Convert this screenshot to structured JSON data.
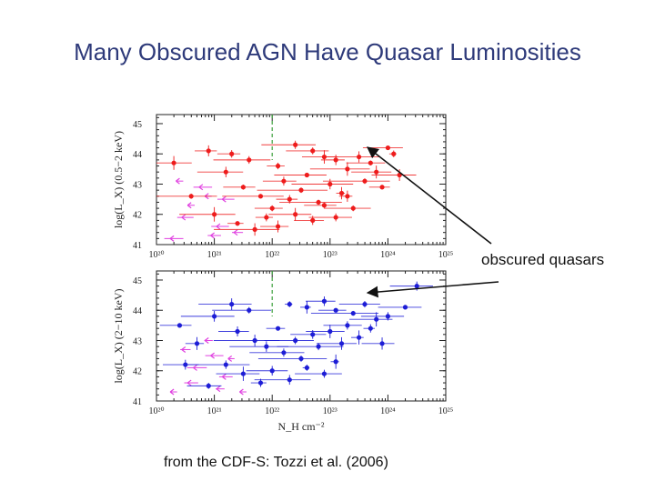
{
  "slide": {
    "title": "Many Obscured AGN Have Quasar Luminosities",
    "annotation": "obscured quasars",
    "caption": "from the CDF-S: Tozzi et al. (2006)"
  },
  "colors": {
    "title": "#2e3a7a",
    "top_series": "#ee1c1c",
    "bottom_series": "#1d1dd6",
    "upper_limits": "#e040e0",
    "reference_line": "#3aa03a"
  },
  "chart_data": [
    {
      "type": "scatter",
      "panel": "top",
      "xlabel": "",
      "ylabel": "log(L_X) (0.5−2 keV)",
      "xscale": "log",
      "xlim": [
        1e+20,
        1e+25
      ],
      "ylim": [
        41,
        45.3
      ],
      "x_tick_labels": [
        "10²⁰",
        "10²¹",
        "10²²",
        "10²³",
        "10²⁴",
        "10²⁵"
      ],
      "y_tick_labels": [
        "41",
        "42",
        "43",
        "44",
        "45"
      ],
      "series": [
        {
          "color": "#ee1c1c",
          "marker": "point-with-errorbars",
          "points": [
            [
              22.1,
              43.6
            ],
            [
              22.4,
              44.3
            ],
            [
              22.7,
              44.1
            ],
            [
              22.9,
              43.9
            ],
            [
              23.1,
              43.8
            ],
            [
              23.3,
              43.5
            ],
            [
              23.5,
              43.9
            ],
            [
              23.7,
              43.7
            ],
            [
              23.8,
              43.4
            ],
            [
              24.0,
              44.2
            ],
            [
              24.1,
              44.0
            ],
            [
              24.2,
              43.3
            ],
            [
              21.2,
              43.4
            ],
            [
              21.5,
              42.9
            ],
            [
              21.8,
              42.6
            ],
            [
              22.0,
              42.2
            ],
            [
              22.2,
              43.1
            ],
            [
              22.3,
              42.5
            ],
            [
              22.5,
              42.8
            ],
            [
              22.6,
              43.3
            ],
            [
              22.8,
              42.4
            ],
            [
              23.0,
              43.0
            ],
            [
              23.2,
              42.7
            ],
            [
              23.4,
              42.2
            ],
            [
              23.6,
              43.1
            ],
            [
              23.9,
              42.9
            ],
            [
              21.0,
              42.0
            ],
            [
              21.4,
              41.7
            ],
            [
              21.7,
              41.5
            ],
            [
              21.9,
              41.9
            ],
            [
              22.1,
              41.6
            ],
            [
              22.4,
              42.0
            ],
            [
              22.7,
              41.8
            ],
            [
              22.9,
              42.3
            ],
            [
              23.1,
              41.9
            ],
            [
              23.3,
              42.6
            ],
            [
              20.3,
              43.7
            ],
            [
              20.6,
              42.6
            ],
            [
              20.9,
              44.1
            ],
            [
              21.3,
              44.0
            ],
            [
              21.6,
              43.8
            ]
          ]
        }
      ],
      "upper_limits": [
        [
          20.4,
          43.1
        ],
        [
          20.6,
          42.3
        ],
        [
          20.8,
          42.9
        ],
        [
          21.0,
          41.3
        ],
        [
          21.2,
          42.5
        ],
        [
          21.4,
          41.4
        ],
        [
          20.5,
          41.9
        ],
        [
          20.9,
          42.6
        ],
        [
          21.1,
          41.6
        ],
        [
          20.3,
          41.2
        ]
      ],
      "reference_x_log": 22,
      "grid": false
    },
    {
      "type": "scatter",
      "panel": "bottom",
      "xlabel": "N_H cm⁻²",
      "ylabel": "log(L_X) (2−10 keV)",
      "xscale": "log",
      "xlim": [
        1e+20,
        1e+25
      ],
      "ylim": [
        41,
        45.3
      ],
      "x_tick_labels": [
        "10²⁰",
        "10²¹",
        "10²²",
        "10²³",
        "10²⁴",
        "10²⁵"
      ],
      "y_tick_labels": [
        "41",
        "42",
        "43",
        "44",
        "45"
      ],
      "series": [
        {
          "color": "#1d1dd6",
          "marker": "point-with-errorbars",
          "points": [
            [
              22.3,
              44.2
            ],
            [
              22.6,
              44.1
            ],
            [
              22.9,
              44.3
            ],
            [
              23.1,
              44.0
            ],
            [
              23.4,
              43.9
            ],
            [
              23.6,
              44.2
            ],
            [
              23.8,
              43.7
            ],
            [
              24.0,
              43.8
            ],
            [
              24.3,
              44.1
            ],
            [
              24.5,
              44.8
            ],
            [
              21.4,
              43.3
            ],
            [
              21.7,
              43.0
            ],
            [
              21.9,
              42.8
            ],
            [
              22.1,
              43.4
            ],
            [
              22.2,
              42.6
            ],
            [
              22.4,
              43.0
            ],
            [
              22.5,
              42.4
            ],
            [
              22.7,
              43.2
            ],
            [
              22.8,
              42.8
            ],
            [
              23.0,
              43.3
            ],
            [
              23.2,
              42.9
            ],
            [
              23.3,
              43.5
            ],
            [
              23.5,
              43.1
            ],
            [
              23.7,
              43.4
            ],
            [
              23.9,
              42.9
            ],
            [
              21.2,
              42.2
            ],
            [
              21.5,
              41.9
            ],
            [
              21.8,
              41.6
            ],
            [
              22.0,
              42.0
            ],
            [
              22.3,
              41.7
            ],
            [
              22.6,
              42.1
            ],
            [
              22.9,
              41.9
            ],
            [
              23.1,
              42.3
            ],
            [
              20.4,
              43.5
            ],
            [
              20.7,
              42.9
            ],
            [
              21.0,
              43.8
            ],
            [
              21.3,
              44.2
            ],
            [
              21.6,
              44.0
            ],
            [
              20.5,
              42.2
            ],
            [
              20.9,
              41.5
            ]
          ]
        }
      ],
      "upper_limits": [
        [
          20.5,
          42.7
        ],
        [
          20.7,
          42.1
        ],
        [
          20.9,
          43.0
        ],
        [
          21.1,
          41.4
        ],
        [
          21.3,
          42.4
        ],
        [
          21.5,
          41.3
        ],
        [
          20.6,
          41.6
        ],
        [
          21.0,
          42.5
        ],
        [
          21.2,
          41.8
        ],
        [
          20.3,
          41.3
        ]
      ],
      "reference_x_log": 22,
      "grid": false
    }
  ]
}
